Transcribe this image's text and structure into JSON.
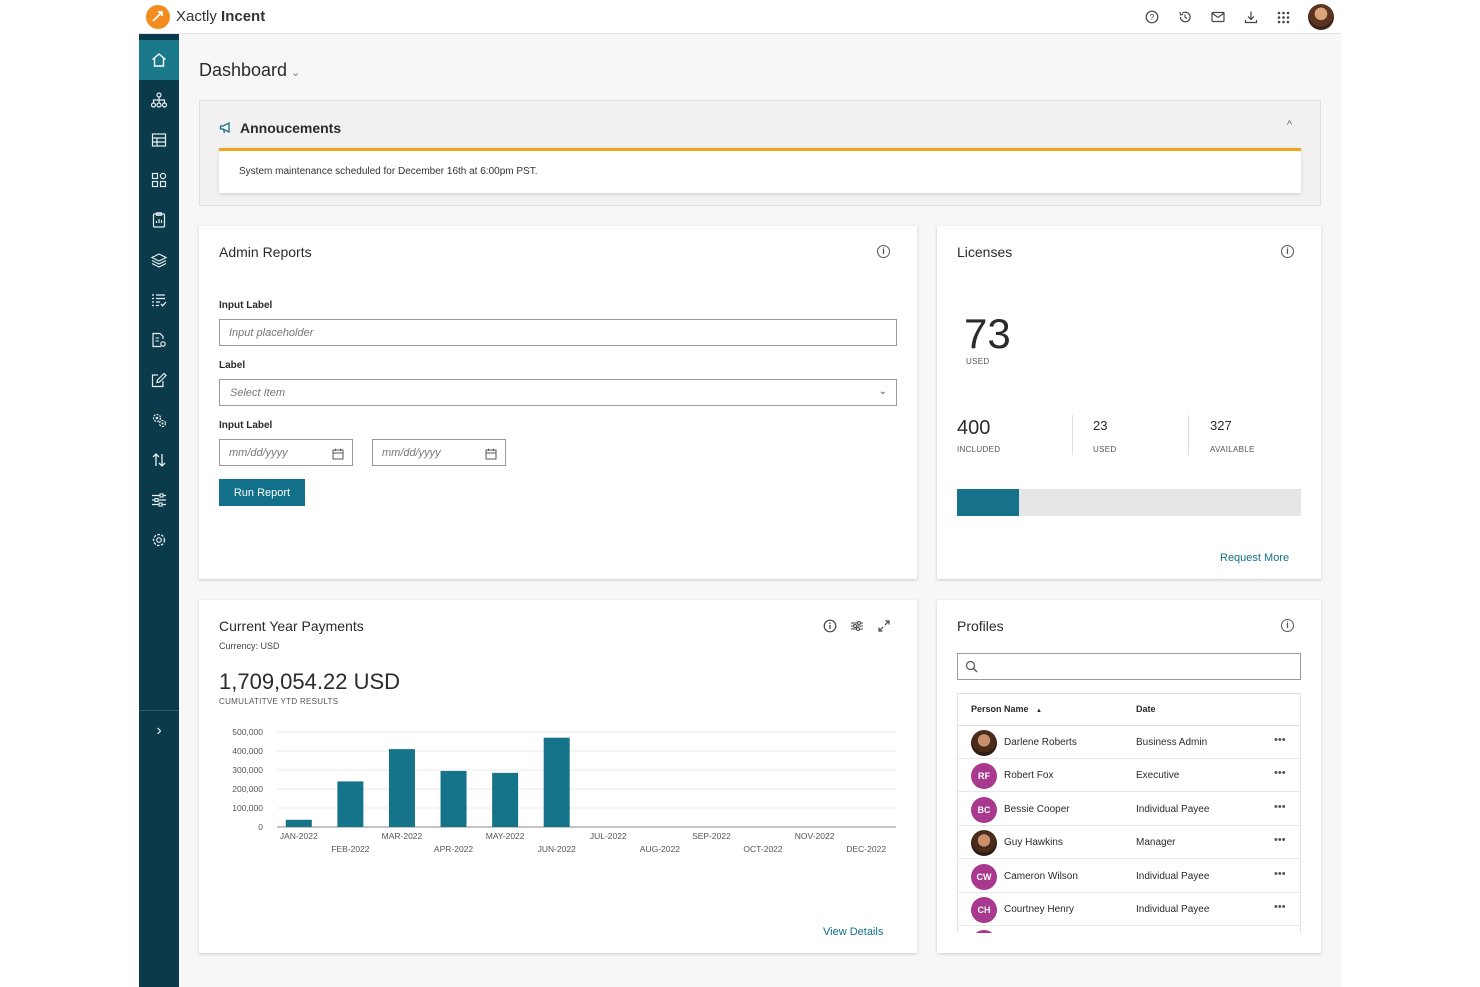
{
  "brand": {
    "name_light": "Xactly",
    "name_bold": "Incent",
    "accent": "#13708a",
    "logo_color": "#f28c1e"
  },
  "topbar": {
    "icons": [
      "help-icon",
      "history-icon",
      "mail-icon",
      "download-icon",
      "apps-grid-icon"
    ]
  },
  "sidebar": {
    "items": [
      "home-icon",
      "org-chart-icon",
      "table-icon",
      "widgets-icon",
      "clipboard-icon",
      "layers-icon",
      "list-check-icon",
      "doc-settings-icon",
      "edit-doc-icon",
      "gear-multi-icon",
      "transfer-icon",
      "sliders-icon",
      "settings-icon"
    ],
    "expand_label": "›"
  },
  "page": {
    "title": "Dashboard",
    "title_chevron": "⌄"
  },
  "announcements": {
    "title": "Annoucements",
    "collapse": "^",
    "message": "System maintenance scheduled for December 16th at 6:00pm PST."
  },
  "admin_reports": {
    "title": "Admin Reports",
    "label1": "Input Label",
    "placeholder1": "Input placeholder",
    "label2": "Label",
    "select_placeholder": "Select Item",
    "label3": "Input Label",
    "date_placeholder1": "mm/dd/yyyy",
    "date_placeholder2": "mm/dd/yyyy",
    "run_button": "Run Report"
  },
  "licenses": {
    "title": "Licenses",
    "used_total": "73",
    "used_total_caption": "USED",
    "included": "400",
    "included_caption": "INCLUDED",
    "used": "23",
    "used_caption": "USED",
    "available": "327",
    "available_caption": "AVAILABLE",
    "progress_fraction": 0.18,
    "request_link": "Request More"
  },
  "payments": {
    "title": "Current Year Payments",
    "currency": "Currency: USD",
    "amount": "1,709,054.22 USD",
    "amount_caption": "CUMULATITVE YTD RESULTS",
    "view_details": "View Details"
  },
  "chart_data": {
    "type": "bar",
    "categories": [
      "JAN-2022",
      "FEB-2022",
      "MAR-2022",
      "APR-2022",
      "MAY-2022",
      "JUN-2022",
      "JUL-2022",
      "AUG-2022",
      "SEP-2022",
      "OCT-2022",
      "NOV-2022",
      "DEC-2022"
    ],
    "values": [
      38000,
      240000,
      410000,
      295000,
      285000,
      470000,
      0,
      0,
      0,
      0,
      0,
      0
    ],
    "y_ticks": [
      "0",
      "100,000",
      "200,000",
      "300,000",
      "400,000",
      "500,000"
    ],
    "ylim": [
      0,
      500000
    ],
    "bar_color": "#16748a",
    "grid": true
  },
  "profiles": {
    "title": "Profiles",
    "search_placeholder": "",
    "col_name": "Person Name",
    "sort_indicator": "▲",
    "col_date": "Date",
    "rows": [
      {
        "initials": "",
        "photo": true,
        "name": "Darlene Roberts",
        "role": "Business Admin",
        "menu": "•••"
      },
      {
        "initials": "RF",
        "photo": false,
        "name": "Robert Fox",
        "role": "Executive",
        "menu": "•••"
      },
      {
        "initials": "BC",
        "photo": false,
        "name": "Bessie Cooper",
        "role": "Individual Payee",
        "menu": "•••"
      },
      {
        "initials": "",
        "photo": true,
        "name": "Guy Hawkins",
        "role": "Manager",
        "menu": "•••"
      },
      {
        "initials": "CW",
        "photo": false,
        "name": "Cameron Wilson",
        "role": "Individual Payee",
        "menu": "•••"
      },
      {
        "initials": "CH",
        "photo": false,
        "name": "Courtney Henry",
        "role": "Individual Payee",
        "menu": "•••"
      }
    ],
    "initials_color": "#a8398e"
  }
}
